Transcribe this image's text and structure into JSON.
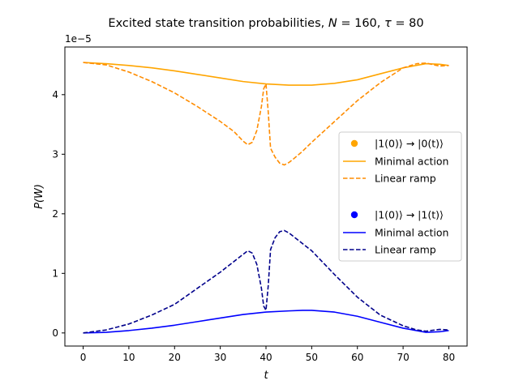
{
  "chart_data": {
    "type": "line",
    "title": "Excited state transition probabilities, N = 160, τ = 80",
    "xlabel": "t",
    "ylabel": "P(W)",
    "y_offset_label": "1e−5",
    "xlim": [
      -4,
      84
    ],
    "ylim": [
      -0.22,
      4.8
    ],
    "x_ticks": [
      0,
      10,
      20,
      30,
      40,
      50,
      60,
      70,
      80
    ],
    "y_ticks": [
      0,
      1,
      2,
      3,
      4
    ],
    "grid": false,
    "legend_placement": "center-right",
    "legend": [
      {
        "kind": "dot",
        "label": "|1(0)⟩ → |0(t)⟩",
        "color": "#ffa500"
      },
      {
        "kind": "solid",
        "label": "Minimal action",
        "color": "#ffa500"
      },
      {
        "kind": "dashed",
        "label": "Linear ramp",
        "color": "#ff8c00"
      },
      {
        "kind": "dot",
        "label": "|1(0)⟩ → |1(t)⟩",
        "color": "#0000ff"
      },
      {
        "kind": "solid",
        "label": "Minimal action",
        "color": "#0000ff"
      },
      {
        "kind": "dashed",
        "label": "Linear ramp",
        "color": "#00008b"
      }
    ],
    "series": [
      {
        "name": "Minimal action",
        "transition": "|1(0)⟩ → |0(t)⟩",
        "color": "#ffa500",
        "dash": false,
        "x": [
          0,
          5,
          10,
          15,
          20,
          25,
          30,
          35,
          40,
          45,
          50,
          55,
          60,
          65,
          70,
          75,
          78,
          80
        ],
        "y": [
          4.54,
          4.52,
          4.49,
          4.45,
          4.4,
          4.34,
          4.28,
          4.22,
          4.18,
          4.16,
          4.16,
          4.19,
          4.25,
          4.35,
          4.45,
          4.52,
          4.51,
          4.49
        ]
      },
      {
        "name": "Linear ramp",
        "transition": "|1(0)⟩ → |0(t)⟩",
        "color": "#ff8c00",
        "dash": true,
        "x": [
          0,
          5,
          10,
          15,
          20,
          25,
          30,
          33,
          35,
          36,
          37,
          38,
          39,
          39.5,
          40,
          40.5,
          41,
          42,
          43,
          44,
          45,
          46,
          48,
          50,
          55,
          60,
          65,
          70,
          73,
          75,
          78,
          80
        ],
        "y": [
          4.54,
          4.5,
          4.38,
          4.22,
          4.03,
          3.8,
          3.55,
          3.38,
          3.22,
          3.16,
          3.2,
          3.4,
          3.8,
          4.1,
          4.18,
          3.7,
          3.1,
          2.95,
          2.85,
          2.82,
          2.86,
          2.92,
          3.05,
          3.2,
          3.55,
          3.9,
          4.2,
          4.45,
          4.52,
          4.53,
          4.48,
          4.49
        ]
      },
      {
        "name": "Minimal action",
        "transition": "|1(0)⟩ → |1(t)⟩",
        "color": "#0000ff",
        "dash": false,
        "x": [
          0,
          5,
          10,
          15,
          20,
          25,
          30,
          35,
          40,
          45,
          48,
          50,
          55,
          60,
          65,
          70,
          75,
          78,
          80
        ],
        "y": [
          0.0,
          0.01,
          0.04,
          0.08,
          0.13,
          0.19,
          0.25,
          0.31,
          0.35,
          0.37,
          0.38,
          0.38,
          0.35,
          0.28,
          0.18,
          0.08,
          0.01,
          0.02,
          0.04
        ]
      },
      {
        "name": "Linear ramp",
        "transition": "|1(0)⟩ → |1(t)⟩",
        "color": "#00008b",
        "dash": true,
        "x": [
          0,
          5,
          10,
          15,
          20,
          25,
          30,
          33,
          35,
          36,
          37,
          38,
          39,
          39.5,
          40,
          40.5,
          41,
          42,
          43,
          44,
          45,
          46,
          48,
          50,
          55,
          60,
          65,
          70,
          73,
          75,
          78,
          80
        ],
        "y": [
          0.0,
          0.05,
          0.15,
          0.3,
          0.48,
          0.75,
          1.02,
          1.2,
          1.32,
          1.38,
          1.34,
          1.15,
          0.75,
          0.45,
          0.38,
          0.8,
          1.4,
          1.6,
          1.7,
          1.72,
          1.68,
          1.62,
          1.5,
          1.38,
          0.98,
          0.6,
          0.3,
          0.12,
          0.05,
          0.03,
          0.06,
          0.05
        ]
      }
    ]
  }
}
